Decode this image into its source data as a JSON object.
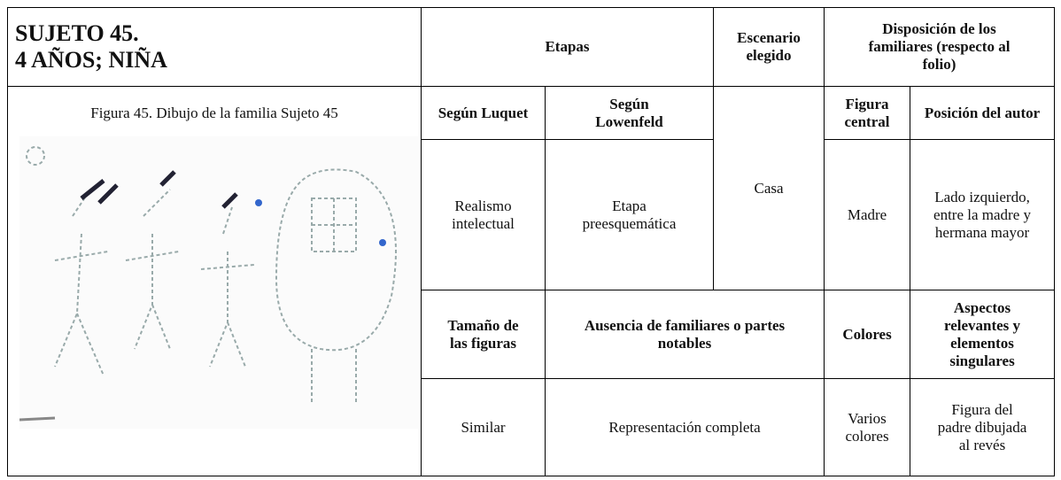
{
  "header": {
    "title": [
      "SUJETO 45.",
      "4 AÑOS; NIÑA"
    ],
    "etapas": "Etapas",
    "escenario": "Escenario elegido",
    "disposicion": "Disposición de los familiares (respecto al folio)"
  },
  "figure_caption": "Figura 45. Dibujo de la familia Sujeto 45",
  "subheader": {
    "luquet": "Según Luquet",
    "lowenfeld": "Según Lowenfeld",
    "figura_central": "Figura central",
    "posicion_autor": "Posición del autor"
  },
  "row1": {
    "luquet": "Realismo intelectual",
    "lowenfeld": "Etapa preesquemática",
    "escenario": "Casa",
    "figura_central": "Madre",
    "posicion_autor": "Lado izquierdo, entre la madre y hermana mayor"
  },
  "subheader2": {
    "tamano": "Tamaño de las figuras",
    "ausencia": "Ausencia de familiares o partes notables",
    "colores": "Colores",
    "aspectos": "Aspectos relevantes y elementos singulares"
  },
  "row2": {
    "tamano": "Similar",
    "ausencia": "Representación completa",
    "colores": "Varios colores",
    "aspectos": "Figura del padre dibujada al revés"
  }
}
